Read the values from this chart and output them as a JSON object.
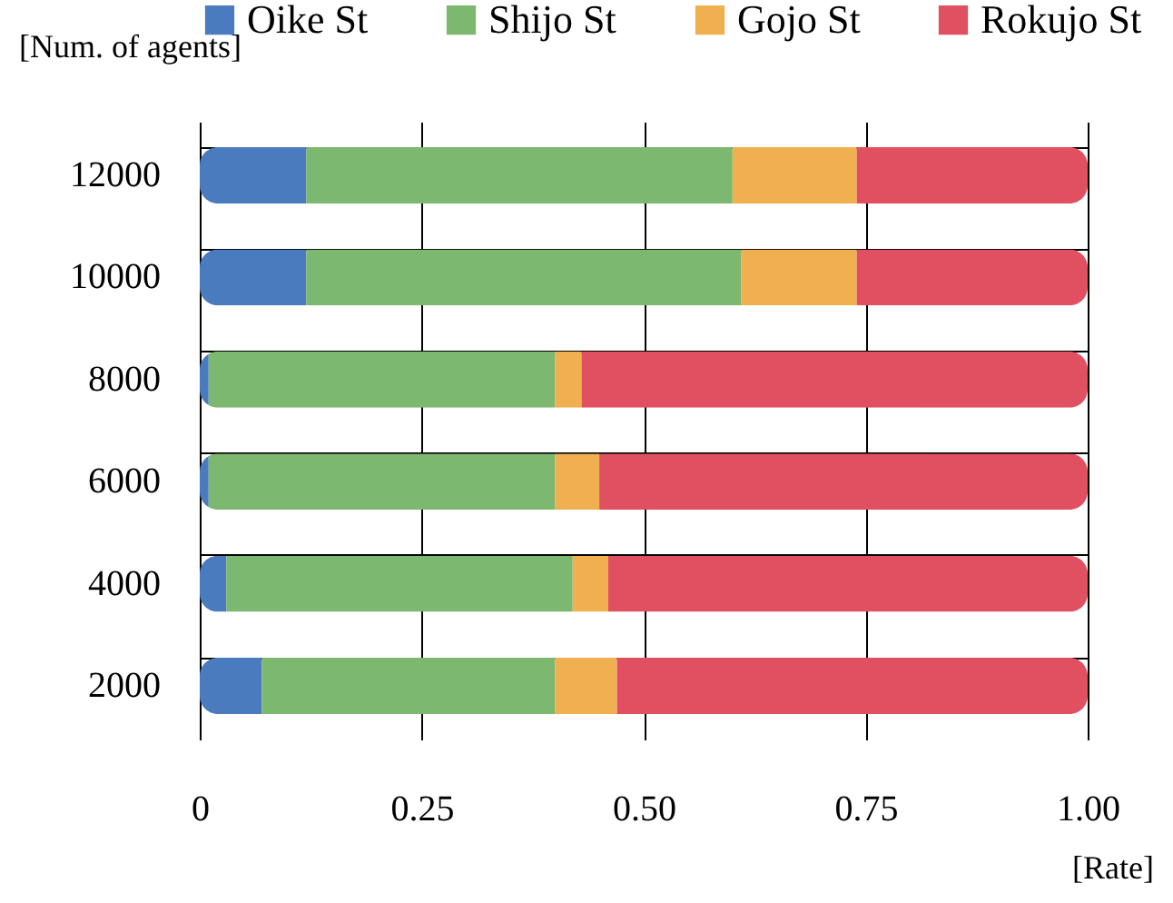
{
  "chart_data": {
    "type": "bar",
    "orientation": "horizontal",
    "stacked": true,
    "xlabel": "[Rate]",
    "ylabel": "[Num. of agents]",
    "categories": [
      "12000",
      "10000",
      "8000",
      "6000",
      "4000",
      "2000"
    ],
    "series": [
      {
        "name": "Oike St",
        "color": "#4a7bbf",
        "values": [
          0.12,
          0.12,
          0.01,
          0.01,
          0.03,
          0.07
        ]
      },
      {
        "name": "Shijo St",
        "color": "#7cb870",
        "values": [
          0.48,
          0.49,
          0.39,
          0.39,
          0.39,
          0.33
        ]
      },
      {
        "name": "Gojo St",
        "color": "#f0b050",
        "values": [
          0.14,
          0.13,
          0.03,
          0.05,
          0.04,
          0.07
        ]
      },
      {
        "name": "Rokujo St",
        "color": "#e05060",
        "values": [
          0.26,
          0.26,
          0.57,
          0.55,
          0.54,
          0.53
        ]
      }
    ],
    "xlim": [
      0,
      1
    ],
    "xticks": [
      0,
      0.25,
      {
        "value": 0.5,
        "label": "0.50"
      },
      0.75,
      {
        "value": 1,
        "label": "1.00"
      }
    ],
    "grid": true,
    "legend": "top"
  }
}
